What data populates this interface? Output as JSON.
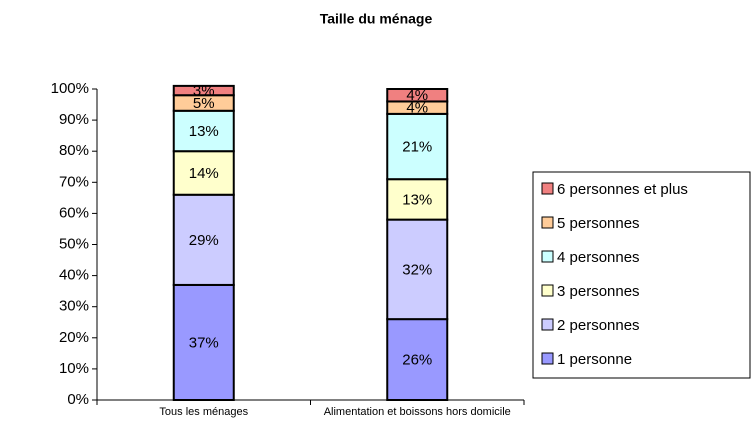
{
  "chart_data": {
    "type": "stacked_bar",
    "title": "Taille du ménage",
    "categories": [
      "Tous les ménages",
      "Alimentation et boissons hors domicile"
    ],
    "series": [
      {
        "name": "1 personne",
        "color": "#9999ff",
        "values": [
          37,
          26
        ],
        "value_labels": [
          "37%",
          "26%"
        ]
      },
      {
        "name": "2 personnes",
        "color": "#ccccff",
        "values": [
          29,
          32
        ],
        "value_labels": [
          "29%",
          "32%"
        ]
      },
      {
        "name": "3 personnes",
        "color": "#ffffcc",
        "values": [
          14,
          13
        ],
        "value_labels": [
          "14%",
          "13%"
        ]
      },
      {
        "name": "4 personnes",
        "color": "#ccffff",
        "values": [
          13,
          21
        ],
        "value_labels": [
          "13%",
          "21%"
        ]
      },
      {
        "name": "5 personnes",
        "color": "#ffcc99",
        "values": [
          5,
          4
        ],
        "value_labels": [
          "5%",
          "4%"
        ]
      },
      {
        "name": "6 personnes et plus",
        "color": "#f08080",
        "values": [
          3,
          4
        ],
        "value_labels": [
          "3%",
          "4%"
        ]
      }
    ],
    "ylim": [
      0,
      100
    ],
    "yticks": [
      {
        "value": 0,
        "label": "0%"
      },
      {
        "value": 10,
        "label": "10%"
      },
      {
        "value": 20,
        "label": "20%"
      },
      {
        "value": 30,
        "label": "30%"
      },
      {
        "value": 40,
        "label": "40%"
      },
      {
        "value": 50,
        "label": "50%"
      },
      {
        "value": 60,
        "label": "60%"
      },
      {
        "value": 70,
        "label": "70%"
      },
      {
        "value": 80,
        "label": "80%"
      },
      {
        "value": 90,
        "label": "90%"
      },
      {
        "value": 100,
        "label": "100%"
      }
    ],
    "legend": "right"
  }
}
